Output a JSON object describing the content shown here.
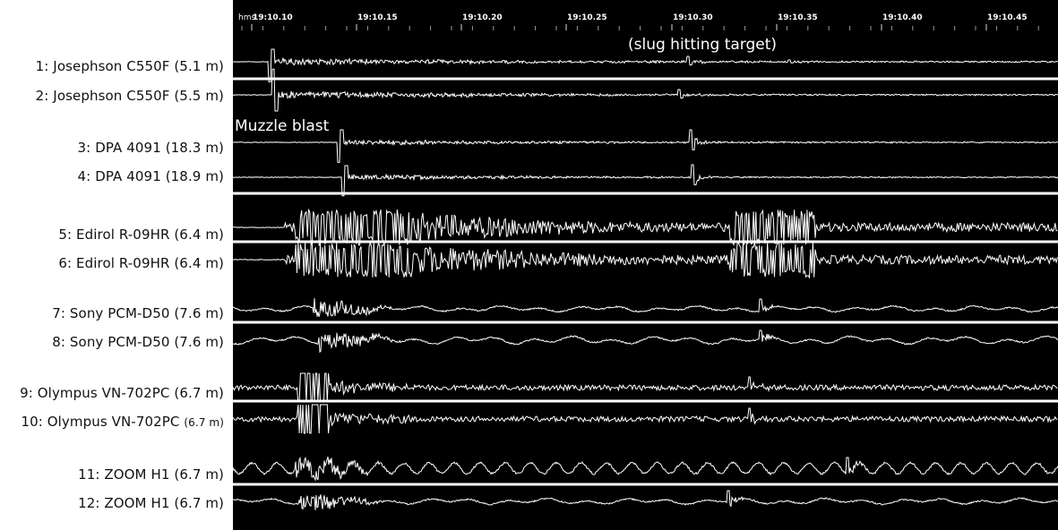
{
  "chart_data": {
    "type": "line",
    "title": "",
    "time_axis": {
      "unit_label": "hms",
      "ticks": [
        "19:10.10",
        "19:10.15",
        "19:10.20",
        "19:10.25",
        "19:10.30",
        "19:10.35",
        "19:10.40",
        "19:10.45"
      ]
    },
    "traces": [
      {
        "name": "1: Josephson C550F (5.1 m)"
      },
      {
        "name": "2: Josephson C550F (5.5 m)"
      },
      {
        "name": "3: DPA 4091 (18.3 m)"
      },
      {
        "name": "4: DPA 4091 (18.9 m)"
      },
      {
        "name": "5: Edirol R-09HR (6.4 m)"
      },
      {
        "name": "6: Edirol R-09HR (6.4 m)"
      },
      {
        "name": "7: Sony PCM-D50 (7.6 m)"
      },
      {
        "name": "8: Sony PCM-D50 (7.6 m)"
      },
      {
        "name": "9: Olympus VN-702PC (6.7 m)"
      },
      {
        "name_main": "10: Olympus VN-702PC",
        "name_sub": "(6.7 m)"
      },
      {
        "name": "11: ZOOM H1 (6.7 m)"
      },
      {
        "name": "12: ZOOM H1 (6.7 m)"
      }
    ],
    "annotations": {
      "muzzle_blast": "Muzzle blast",
      "slug_impact": "(slug hitting target)"
    },
    "background_color": "#000000",
    "trace_color": "#ffffff"
  }
}
